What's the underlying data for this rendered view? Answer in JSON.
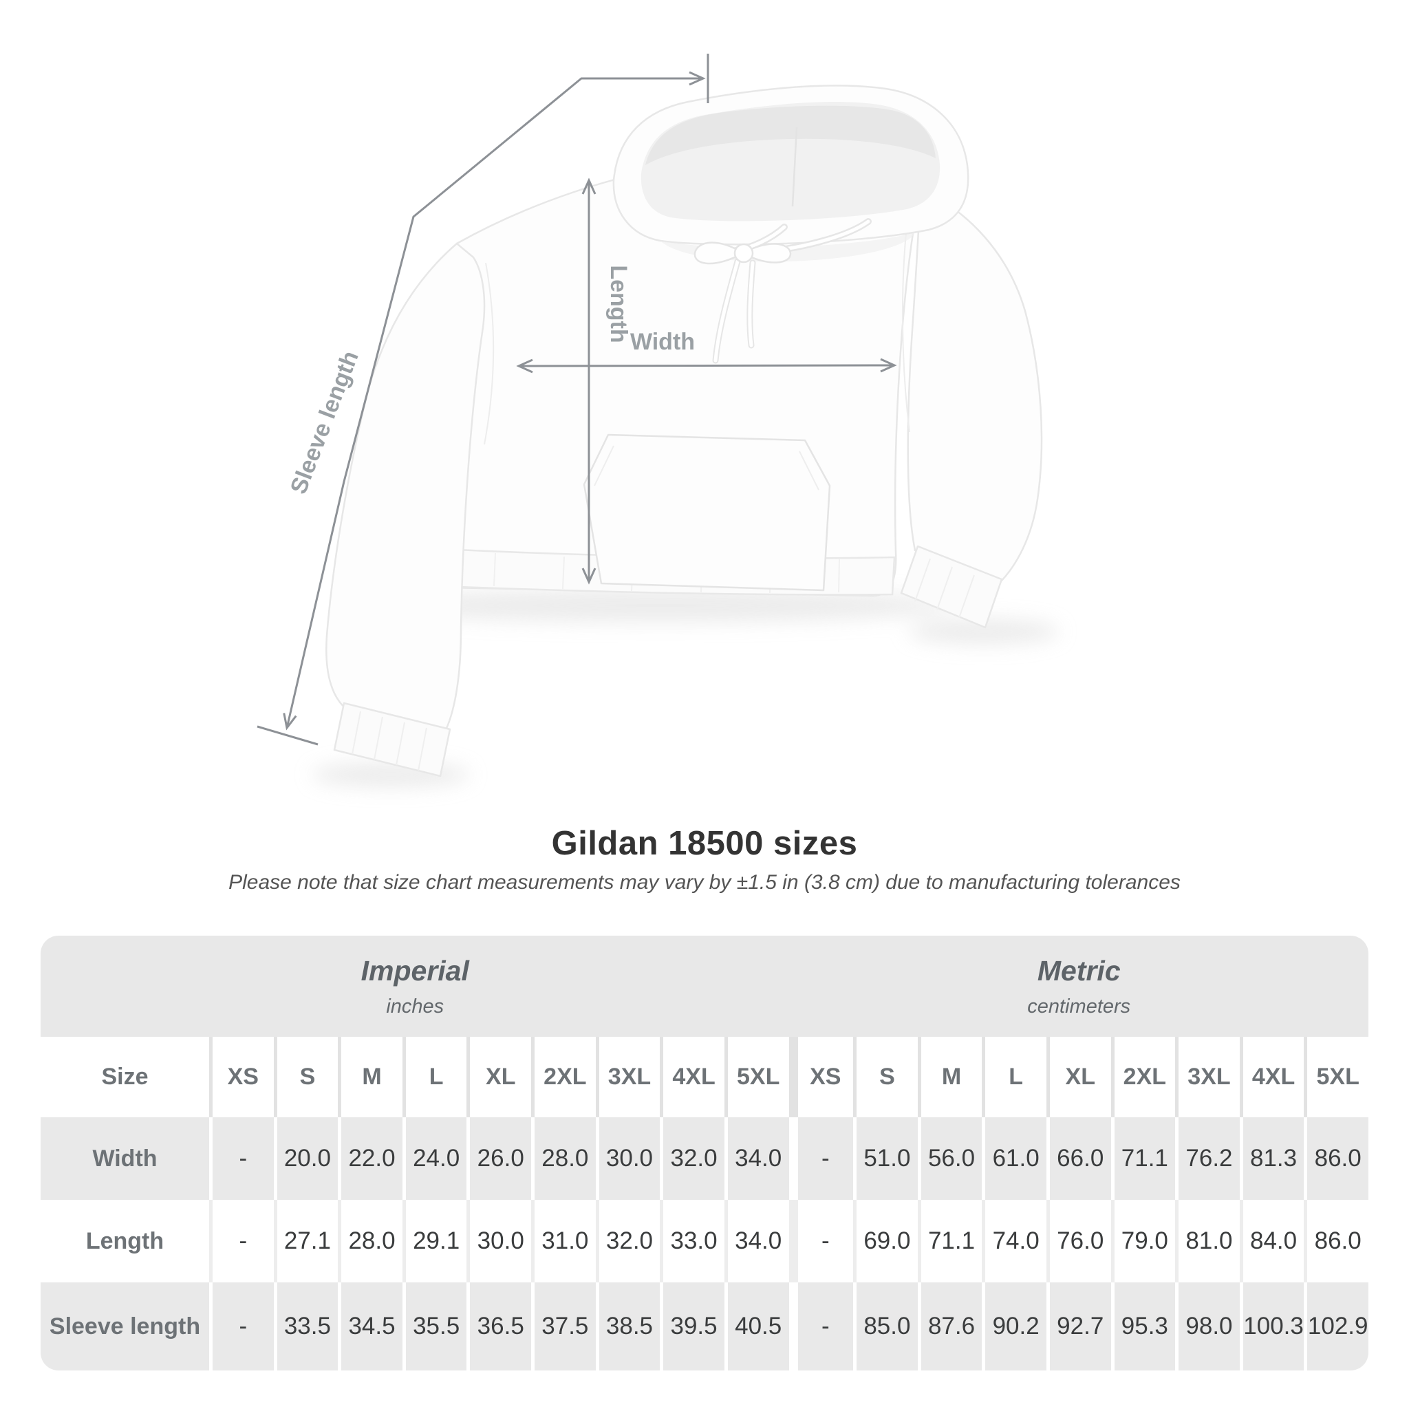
{
  "title": "Gildan 18500 sizes",
  "subtitle": "Please note that size chart measurements may vary by ±1.5 in (3.8 cm) due to manufacturing tolerances",
  "figure": {
    "length_label": "Length",
    "width_label": "Width",
    "sleeve_label": "Sleeve length"
  },
  "chart_data": {
    "type": "table",
    "title": "Gildan 18500 sizes",
    "note": "Measurements may vary by ±1.5 in (3.8 cm) due to manufacturing tolerances",
    "size_label": "Size",
    "unit_groups": [
      {
        "name": "Imperial",
        "unit": "inches"
      },
      {
        "name": "Metric",
        "unit": "centimeters"
      }
    ],
    "sizes": [
      "XS",
      "S",
      "M",
      "L",
      "XL",
      "2XL",
      "3XL",
      "4XL",
      "5XL"
    ],
    "rows": [
      {
        "label": "Width",
        "imperial": [
          "-",
          "20.0",
          "22.0",
          "24.0",
          "26.0",
          "28.0",
          "30.0",
          "32.0",
          "34.0"
        ],
        "metric": [
          "-",
          "51.0",
          "56.0",
          "61.0",
          "66.0",
          "71.1",
          "76.2",
          "81.3",
          "86.0"
        ]
      },
      {
        "label": "Length",
        "imperial": [
          "-",
          "27.1",
          "28.0",
          "29.1",
          "30.0",
          "31.0",
          "32.0",
          "33.0",
          "34.0"
        ],
        "metric": [
          "-",
          "69.0",
          "71.1",
          "74.0",
          "76.0",
          "79.0",
          "81.0",
          "84.0",
          "86.0"
        ]
      },
      {
        "label": "Sleeve length",
        "imperial": [
          "-",
          "33.5",
          "34.5",
          "35.5",
          "36.5",
          "37.5",
          "38.5",
          "39.5",
          "40.5"
        ],
        "metric": [
          "-",
          "85.0",
          "87.6",
          "90.2",
          "92.7",
          "95.3",
          "98.0",
          "100.3",
          "102.9"
        ]
      }
    ]
  },
  "colors": {
    "annotation_line": "#8d9196",
    "annotation_text": "#9aa0a4",
    "band_bg": "#e8e8e8",
    "row_alt_bg": "#e9e9e9",
    "header_text": "#6d7276",
    "value_text": "#3a3c3d",
    "title_text": "#333333",
    "subtitle_text": "#545454"
  }
}
